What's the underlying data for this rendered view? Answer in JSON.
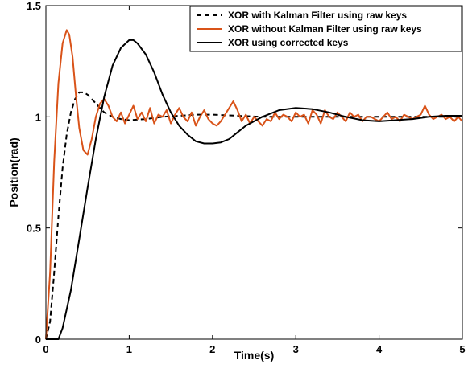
{
  "chart_data": {
    "type": "line",
    "title": "",
    "xlabel": "Time(s)",
    "ylabel": "Position(rad)",
    "xlim": [
      0,
      5
    ],
    "ylim": [
      0,
      1.5
    ],
    "xticks": [
      0,
      1,
      2,
      3,
      4,
      5
    ],
    "xtick_labels": [
      "0",
      "1",
      "2",
      "3",
      "4",
      "5"
    ],
    "yticks": [
      0,
      0.5,
      1,
      1.5
    ],
    "ytick_labels": [
      "0",
      "0.5",
      "1",
      "1.5"
    ],
    "grid": false,
    "legend_position": "top-right",
    "series": [
      {
        "name": "XOR with Kalman Filter  using raw keys",
        "color": "#000000",
        "style": "dashed",
        "x": [
          0,
          0.05,
          0.1,
          0.15,
          0.2,
          0.25,
          0.3,
          0.35,
          0.4,
          0.45,
          0.5,
          0.55,
          0.6,
          0.65,
          0.7,
          0.75,
          0.8,
          0.9,
          1.0,
          1.2,
          1.4,
          1.6,
          1.8,
          2.0,
          2.3,
          2.6,
          3.0,
          3.5,
          4.0,
          4.5,
          5.0
        ],
        "y": [
          0,
          0.08,
          0.3,
          0.55,
          0.77,
          0.92,
          1.02,
          1.08,
          1.11,
          1.11,
          1.1,
          1.08,
          1.06,
          1.04,
          1.02,
          1.01,
          1.0,
          0.99,
          0.985,
          0.99,
          1.0,
          1.005,
          1.01,
          1.01,
          1.005,
          1.0,
          1.0,
          1.0,
          1.0,
          1.0,
          1.0
        ]
      },
      {
        "name": "XOR without Kalman Filter using raw keys",
        "color": "#d95319",
        "style": "solid",
        "x": [
          0,
          0.05,
          0.1,
          0.15,
          0.2,
          0.25,
          0.28,
          0.32,
          0.36,
          0.4,
          0.45,
          0.5,
          0.55,
          0.6,
          0.65,
          0.7,
          0.75,
          0.8,
          0.85,
          0.9,
          0.95,
          1.0,
          1.05,
          1.1,
          1.15,
          1.2,
          1.25,
          1.3,
          1.35,
          1.4,
          1.45,
          1.5,
          1.55,
          1.6,
          1.65,
          1.7,
          1.75,
          1.8,
          1.85,
          1.9,
          1.95,
          2.0,
          2.05,
          2.1,
          2.15,
          2.2,
          2.25,
          2.3,
          2.35,
          2.4,
          2.45,
          2.5,
          2.55,
          2.6,
          2.65,
          2.7,
          2.75,
          2.8,
          2.85,
          2.9,
          2.95,
          3.0,
          3.05,
          3.1,
          3.15,
          3.2,
          3.25,
          3.3,
          3.35,
          3.4,
          3.45,
          3.5,
          3.55,
          3.6,
          3.65,
          3.7,
          3.75,
          3.8,
          3.85,
          3.9,
          3.95,
          4.0,
          4.05,
          4.1,
          4.15,
          4.2,
          4.25,
          4.3,
          4.35,
          4.4,
          4.45,
          4.5,
          4.55,
          4.6,
          4.65,
          4.7,
          4.75,
          4.8,
          4.85,
          4.9,
          4.95,
          5.0
        ],
        "y": [
          0,
          0.3,
          0.8,
          1.15,
          1.33,
          1.39,
          1.37,
          1.27,
          1.1,
          0.95,
          0.85,
          0.83,
          0.9,
          1.0,
          1.06,
          1.08,
          1.05,
          1.0,
          0.98,
          1.02,
          0.97,
          1.01,
          1.05,
          0.99,
          1.02,
          0.98,
          1.04,
          0.97,
          1.01,
          1.0,
          1.03,
          0.97,
          1.01,
          1.04,
          1.0,
          0.98,
          1.02,
          0.96,
          1.0,
          1.03,
          0.99,
          0.97,
          0.96,
          0.98,
          1.01,
          1.04,
          1.07,
          1.03,
          0.98,
          1.01,
          0.97,
          1.0,
          0.98,
          0.96,
          0.99,
          0.98,
          1.02,
          0.99,
          1.01,
          1.0,
          0.98,
          1.02,
          1.0,
          1.01,
          0.97,
          1.03,
          1.01,
          0.97,
          1.03,
          1.0,
          0.99,
          1.02,
          1.0,
          0.98,
          1.02,
          1.0,
          1.01,
          0.98,
          1.0,
          1.0,
          0.99,
          0.98,
          1.0,
          1.02,
          0.99,
          1.0,
          0.98,
          1.01,
          1.0,
          0.99,
          1.0,
          1.01,
          1.05,
          1.01,
          0.99,
          1.0,
          1.01,
          0.99,
          1.0,
          0.98,
          1.0,
          0.98
        ]
      },
      {
        "name": "XOR using corrected keys",
        "color": "#000000",
        "style": "solid",
        "x": [
          0,
          0.1,
          0.15,
          0.2,
          0.3,
          0.4,
          0.5,
          0.6,
          0.7,
          0.8,
          0.9,
          1.0,
          1.05,
          1.1,
          1.2,
          1.3,
          1.4,
          1.5,
          1.6,
          1.7,
          1.8,
          1.9,
          2.0,
          2.1,
          2.2,
          2.3,
          2.4,
          2.6,
          2.8,
          3.0,
          3.2,
          3.4,
          3.6,
          3.8,
          4.0,
          4.2,
          4.4,
          4.6,
          4.8,
          5.0
        ],
        "y": [
          0,
          0,
          0,
          0.05,
          0.22,
          0.45,
          0.68,
          0.9,
          1.09,
          1.23,
          1.31,
          1.345,
          1.345,
          1.33,
          1.28,
          1.2,
          1.1,
          1.02,
          0.96,
          0.92,
          0.89,
          0.88,
          0.88,
          0.885,
          0.9,
          0.93,
          0.96,
          1.0,
          1.03,
          1.04,
          1.035,
          1.02,
          1.0,
          0.985,
          0.98,
          0.985,
          0.99,
          1.0,
          1.005,
          1.005
        ]
      }
    ]
  }
}
